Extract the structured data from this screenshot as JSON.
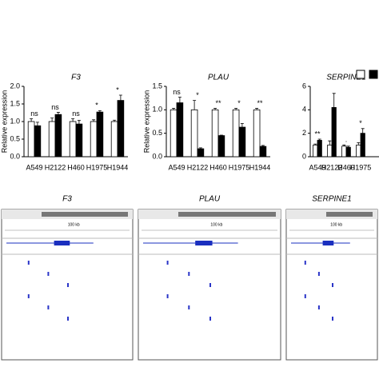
{
  "chart_data": [
    {
      "type": "bar",
      "title": "F3",
      "y_label": "Relative expression",
      "categories": [
        "A549",
        "H2122",
        "H460",
        "H1975",
        "H1944"
      ],
      "series": [
        {
          "color": "#ffffff",
          "values": [
            1.0,
            1.0,
            1.0,
            1.0,
            1.0
          ],
          "errors": [
            0.08,
            0.1,
            0.08,
            0.05,
            0.04
          ]
        },
        {
          "color": "#000000",
          "values": [
            0.88,
            1.2,
            0.93,
            1.27,
            1.6
          ],
          "errors": [
            0.1,
            0.06,
            0.1,
            0.04,
            0.15
          ]
        }
      ],
      "annotations": [
        "ns",
        "ns",
        "ns",
        "*",
        "*"
      ],
      "ylim": [
        0,
        2
      ],
      "yticks": [
        {
          "value": 0,
          "label": "0.0"
        },
        0.5,
        {
          "value": 1,
          "label": "1.0"
        },
        1.5,
        {
          "value": 2,
          "label": "2.0"
        }
      ]
    },
    {
      "type": "bar",
      "title": "PLAU",
      "y_label": "Relative expression",
      "categories": [
        "A549",
        "H2122",
        "H460",
        "H1975",
        "H1944"
      ],
      "series": [
        {
          "color": "#ffffff",
          "values": [
            1.0,
            1.0,
            1.0,
            1.0,
            1.0
          ],
          "errors": [
            0.03,
            0.2,
            0.03,
            0.03,
            0.03
          ]
        },
        {
          "color": "#000000",
          "values": [
            1.15,
            0.17,
            0.45,
            0.63,
            0.22
          ],
          "errors": [
            0.12,
            0.02,
            0.01,
            0.08,
            0.02
          ]
        }
      ],
      "annotations": [
        "ns",
        "*",
        "**",
        "*",
        "**"
      ],
      "ylim": [
        0,
        1.5
      ],
      "yticks": [
        {
          "value": 0,
          "label": "0.0"
        },
        0.5,
        {
          "value": 1,
          "label": "1.0"
        },
        1.5
      ]
    },
    {
      "type": "bar",
      "title": "SERPINE1",
      "categories": [
        "A549",
        "H2122",
        "H460",
        "H1975"
      ],
      "series": [
        {
          "color": "#ffffff",
          "values": [
            1.0,
            1.0,
            0.9,
            1.0
          ],
          "errors": [
            0.08,
            0.35,
            0.1,
            0.2
          ]
        },
        {
          "color": "#000000",
          "values": [
            1.4,
            4.2,
            0.8,
            2.0
          ],
          "errors": [
            0.1,
            1.2,
            0.1,
            0.4
          ]
        }
      ],
      "annotations": [
        "**",
        null,
        ".",
        "*"
      ],
      "ylim": [
        0,
        6
      ],
      "yticks": [
        0,
        2,
        4,
        6
      ]
    }
  ],
  "genome_panels": [
    {
      "title": "F3",
      "scale": "100 kb"
    },
    {
      "title": "PLAU",
      "scale": "100 kb"
    },
    {
      "title": "SERPINE1",
      "scale": "100 kb"
    }
  ]
}
